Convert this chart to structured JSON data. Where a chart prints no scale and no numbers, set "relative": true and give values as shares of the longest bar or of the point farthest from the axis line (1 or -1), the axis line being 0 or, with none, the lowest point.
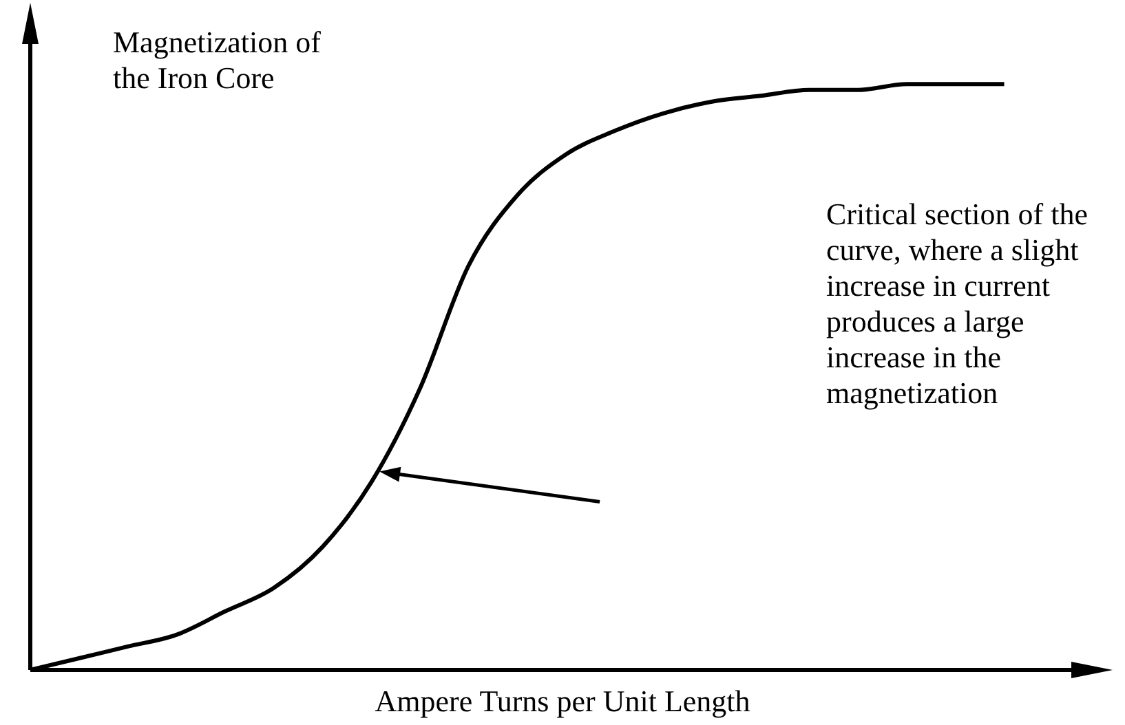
{
  "chart_data": {
    "type": "line",
    "relative": true,
    "xlabel": "Ampere Turns per Unit Length",
    "ylabel": "Magnetization of the Iron Core",
    "categories": [
      null,
      null,
      null,
      null,
      null,
      null,
      null,
      null,
      null,
      null,
      null,
      null,
      null,
      null,
      null,
      null,
      null,
      null,
      null,
      null,
      null,
      null,
      null
    ],
    "series": [
      {
        "color": "#000000",
        "values": [
          0,
          0.02,
          0.04,
          0.06,
          0.1,
          0.14,
          0.21,
          0.32,
          0.48,
          0.69,
          0.81,
          0.88,
          0.92,
          0.95,
          0.97,
          0.98,
          0.99,
          0.99,
          1,
          1,
          1,
          null,
          null
        ]
      }
    ],
    "annotations": [
      "Critical section of the curve, where a slight increase in current produces a large increase in the magnetization"
    ],
    "legend": false,
    "line_style": "solid"
  }
}
